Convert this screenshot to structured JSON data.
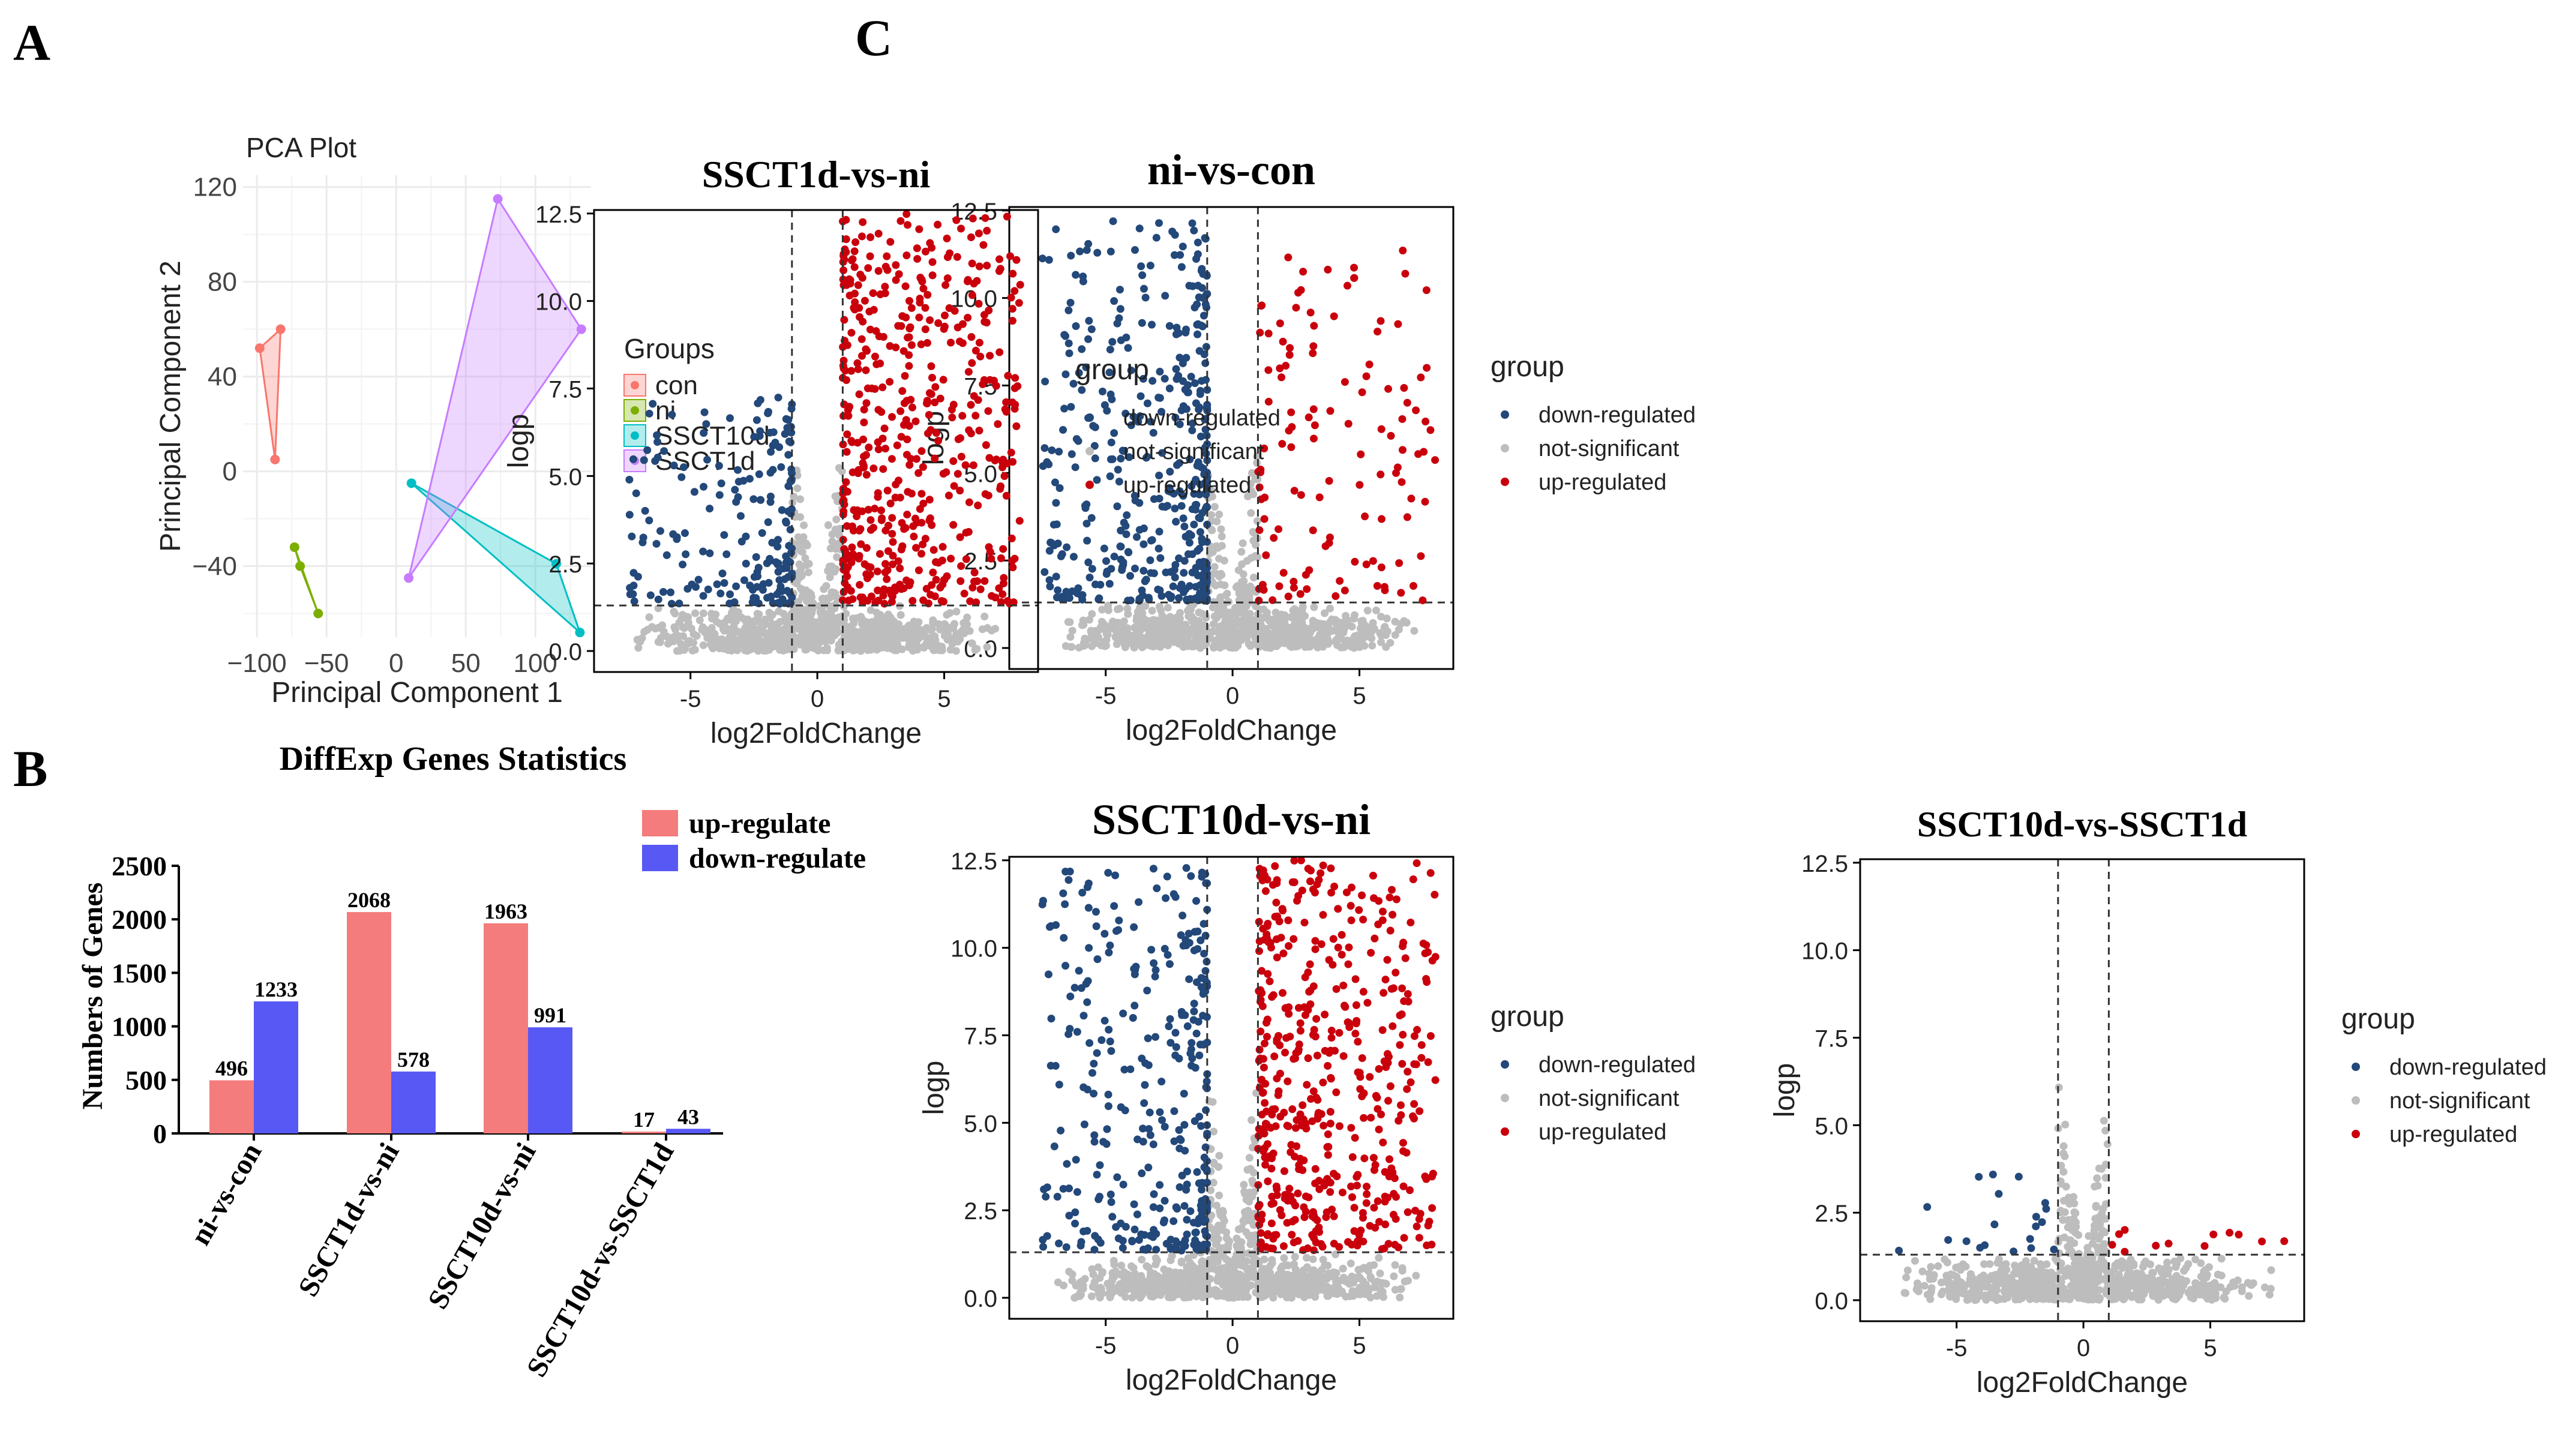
{
  "panel_labels": {
    "a": "A",
    "b": "B",
    "c": "C"
  },
  "chart_data": [
    {
      "id": "pca",
      "type": "scatter",
      "title": "PCA Plot",
      "xlabel": "Principal Component 1",
      "ylabel": "Principal Component 2",
      "xlim": [
        -110,
        140
      ],
      "ylim": [
        -70,
        125
      ],
      "xticks": [
        -100,
        -50,
        0,
        50,
        100
      ],
      "xtick_labels": [
        "−100",
        "−50",
        "0",
        "50",
        "100"
      ],
      "yticks": [
        -40,
        0,
        40,
        80,
        120
      ],
      "ytick_labels": [
        "−40",
        "0",
        "40",
        "80",
        "120"
      ],
      "legend_title": "Groups",
      "series": [
        {
          "name": "con",
          "color": "#f8766d",
          "points": [
            [
              -98,
              52
            ],
            [
              -83,
              60
            ],
            [
              -87,
              5
            ]
          ]
        },
        {
          "name": "ni",
          "color": "#7cae00",
          "points": [
            [
              -73,
              -32
            ],
            [
              -69,
              -40
            ],
            [
              -56,
              -60
            ]
          ]
        },
        {
          "name": "SSCT10d",
          "color": "#00bfc4",
          "points": [
            [
              11,
              -5
            ],
            [
              115,
              -39
            ],
            [
              132,
              -68
            ]
          ]
        },
        {
          "name": "SSCT1d",
          "color": "#c77cff",
          "points": [
            [
              9,
              -45
            ],
            [
              73,
              115
            ],
            [
              133,
              60
            ]
          ]
        }
      ]
    },
    {
      "id": "diffexp",
      "type": "bar",
      "title": "DiffExp Genes Statistics",
      "xlabel": "",
      "ylabel": "Numbers of Genes",
      "ylim": [
        0,
        2500
      ],
      "yticks": [
        0,
        500,
        1000,
        1500,
        2000,
        2500
      ],
      "ytick_labels": [
        "0",
        "500",
        "1000",
        "1500",
        "2000",
        "2500"
      ],
      "categories": [
        "ni-vs-con",
        "SSCT1d-vs-ni",
        "SSCT10d-vs-ni",
        "SSCT10d-vs-SSCT1d"
      ],
      "series": [
        {
          "name": "up-regulate",
          "color": "#f47c7c",
          "values": [
            496,
            2068,
            1963,
            17
          ]
        },
        {
          "name": "down-regulate",
          "color": "#5858f4",
          "values": [
            1233,
            578,
            991,
            43
          ]
        }
      ],
      "data_labels": [
        [
          "496",
          "2068",
          "1963",
          "17"
        ],
        [
          "1233",
          "578",
          "991",
          "43"
        ]
      ]
    },
    {
      "id": "volcano",
      "type": "scatter",
      "xlabel": "log2FoldChange",
      "ylabel": "logp",
      "xlim": [
        -8.8,
        8.7
      ],
      "ylim": [
        -0.6,
        12.6
      ],
      "xticks": [
        -5,
        0,
        5
      ],
      "xtick_labels": [
        "-5",
        "0",
        "5"
      ],
      "yticks": [
        0,
        2.5,
        5,
        7.5,
        10,
        12.5
      ],
      "ytick_labels": [
        "0.0",
        "2.5",
        "5.0",
        "7.5",
        "10.0",
        "12.5"
      ],
      "fc_threshold": [
        -1,
        1
      ],
      "p_threshold": 1.3,
      "legend_title": "group",
      "legend_items": [
        {
          "label": "down-regulated",
          "color": "#23487a"
        },
        {
          "label": "not-significant",
          "color": "#bdbdbd"
        },
        {
          "label": "up-regulated",
          "color": "#c9000c"
        }
      ],
      "panels": [
        {
          "title": "ni-vs-con",
          "down_count": 1233,
          "up_count": 496,
          "down_max": 12.2,
          "up_max": 11.5
        },
        {
          "title": "SSCT1d-vs-ni",
          "down_count": 578,
          "up_count": 2068,
          "down_max": 7.3,
          "up_max": 12.5
        },
        {
          "title": "SSCT10d-vs-ni",
          "down_count": 991,
          "up_count": 1963,
          "down_max": 12.3,
          "up_max": 12.5
        },
        {
          "title": "SSCT10d-vs-SSCT1d",
          "down_count": 43,
          "up_count": 17,
          "down_max": 3.6,
          "up_max": 2.1
        }
      ]
    }
  ]
}
